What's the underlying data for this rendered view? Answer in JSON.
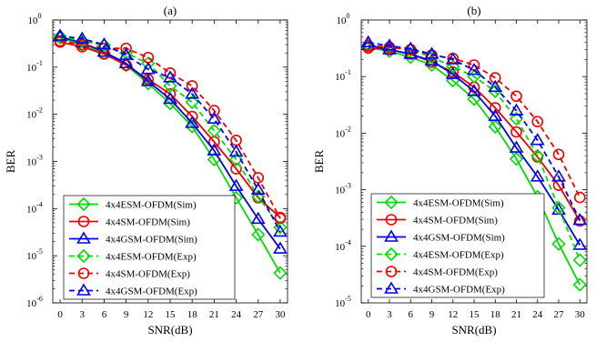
{
  "chart_data": [
    {
      "type": "line",
      "title": "(a)",
      "xlabel": "SNR(dB)",
      "ylabel": "BER",
      "xlim": [
        -1,
        31
      ],
      "ylim": [
        1e-06,
        1
      ],
      "yscale": "log",
      "xticks": [
        0,
        3,
        6,
        9,
        12,
        15,
        18,
        21,
        24,
        27,
        30
      ],
      "yticks": [
        {
          "value": 1e-06,
          "base": "10",
          "exp": "-6"
        },
        {
          "value": 1e-05,
          "base": "10",
          "exp": "-5"
        },
        {
          "value": 0.0001,
          "base": "10",
          "exp": "-4"
        },
        {
          "value": 0.001,
          "base": "10",
          "exp": "-3"
        },
        {
          "value": 0.01,
          "base": "10",
          "exp": "-2"
        },
        {
          "value": 0.1,
          "base": "10",
          "exp": "-1"
        },
        {
          "value": 1,
          "base": "10",
          "exp": "0"
        }
      ],
      "grid": false,
      "legend": "bottom-left",
      "x": [
        0,
        3,
        6,
        9,
        12,
        15,
        18,
        21,
        24,
        27,
        30
      ],
      "series": [
        {
          "name": "4x4ESM-OFDM(Sim)",
          "color": "#00dd00",
          "marker": "diamond",
          "dash": "solid",
          "values": [
            0.42,
            0.3,
            0.2,
            0.11,
            0.045,
            0.017,
            0.0055,
            0.0011,
            0.00017,
            2.8e-05,
            4.3e-06
          ]
        },
        {
          "name": "4x4SM-OFDM(Sim)",
          "color": "#ee0000",
          "marker": "circle",
          "dash": "solid",
          "values": [
            0.34,
            0.27,
            0.19,
            0.11,
            0.055,
            0.027,
            0.009,
            0.0026,
            0.0007,
            0.00017,
            6.5e-05
          ]
        },
        {
          "name": "4x4GSM-OFDM(Sim)",
          "color": "#0000ee",
          "marker": "triangle",
          "dash": "solid",
          "values": [
            0.44,
            0.33,
            0.21,
            0.12,
            0.05,
            0.021,
            0.0065,
            0.0017,
            0.0003,
            6e-05,
            1.4e-05
          ]
        },
        {
          "name": "4x4ESM-OFDM(Exp)",
          "color": "#00dd00",
          "marker": "diamond",
          "dash": "dashed",
          "values": [
            0.45,
            0.36,
            0.29,
            0.2,
            0.12,
            0.04,
            0.018,
            0.0045,
            0.0011,
            0.00018,
            4e-05
          ]
        },
        {
          "name": "4x4SM-OFDM(Exp)",
          "color": "#ee0000",
          "marker": "circle",
          "dash": "dashed",
          "values": [
            0.36,
            0.3,
            0.25,
            0.25,
            0.16,
            0.075,
            0.04,
            0.012,
            0.0028,
            0.00045,
            6.2e-05
          ]
        },
        {
          "name": "4x4GSM-OFDM(Exp)",
          "color": "#0000ee",
          "marker": "triangle",
          "dash": "dashed",
          "values": [
            0.46,
            0.4,
            0.3,
            0.18,
            0.09,
            0.06,
            0.027,
            0.008,
            0.0016,
            0.00025,
            3.2e-05
          ]
        }
      ]
    },
    {
      "type": "line",
      "title": "(b)",
      "xlabel": "SNR(dB)",
      "ylabel": "BER",
      "xlim": [
        -1,
        31
      ],
      "ylim": [
        1e-05,
        1
      ],
      "yscale": "log",
      "xticks": [
        0,
        3,
        6,
        9,
        12,
        15,
        18,
        21,
        24,
        27,
        30
      ],
      "yticks": [
        {
          "value": 1e-05,
          "base": "10",
          "exp": "-5"
        },
        {
          "value": 0.0001,
          "base": "10",
          "exp": "-4"
        },
        {
          "value": 0.001,
          "base": "10",
          "exp": "-3"
        },
        {
          "value": 0.01,
          "base": "10",
          "exp": "-2"
        },
        {
          "value": 0.1,
          "base": "10",
          "exp": "-1"
        },
        {
          "value": 1,
          "base": "10",
          "exp": "0"
        }
      ],
      "grid": false,
      "legend": "bottom-left",
      "x": [
        0,
        3,
        6,
        9,
        12,
        15,
        18,
        21,
        24,
        27,
        30
      ],
      "series": [
        {
          "name": "4x4ESM-OFDM(Sim)",
          "color": "#00dd00",
          "marker": "diamond",
          "dash": "solid",
          "values": [
            0.33,
            0.28,
            0.22,
            0.16,
            0.085,
            0.04,
            0.013,
            0.0035,
            0.00075,
            0.00011,
            2.1e-05
          ]
        },
        {
          "name": "4x4SM-OFDM(Sim)",
          "color": "#ee0000",
          "marker": "circle",
          "dash": "solid",
          "values": [
            0.32,
            0.3,
            0.25,
            0.18,
            0.12,
            0.065,
            0.028,
            0.0105,
            0.0038,
            0.0012,
            0.00028
          ]
        },
        {
          "name": "4x4GSM-OFDM(Sim)",
          "color": "#0000ee",
          "marker": "triangle",
          "dash": "solid",
          "values": [
            0.36,
            0.3,
            0.25,
            0.19,
            0.11,
            0.055,
            0.02,
            0.0055,
            0.0017,
            0.00044,
            0.000105
          ]
        },
        {
          "name": "4x4ESM-OFDM(Exp)",
          "color": "#00dd00",
          "marker": "diamond",
          "dash": "dashed",
          "values": [
            0.36,
            0.33,
            0.3,
            0.22,
            0.15,
            0.1,
            0.055,
            0.018,
            0.004,
            0.00048,
            5.7e-05
          ]
        },
        {
          "name": "4x4SM-OFDM(Exp)",
          "color": "#ee0000",
          "marker": "circle",
          "dash": "dashed",
          "values": [
            0.35,
            0.33,
            0.3,
            0.24,
            0.21,
            0.16,
            0.095,
            0.045,
            0.016,
            0.0042,
            0.00073
          ]
        },
        {
          "name": "4x4GSM-OFDM(Exp)",
          "color": "#0000ee",
          "marker": "triangle",
          "dash": "dashed",
          "values": [
            0.4,
            0.35,
            0.31,
            0.25,
            0.2,
            0.13,
            0.065,
            0.025,
            0.0075,
            0.0017,
            0.00029
          ]
        }
      ]
    }
  ]
}
